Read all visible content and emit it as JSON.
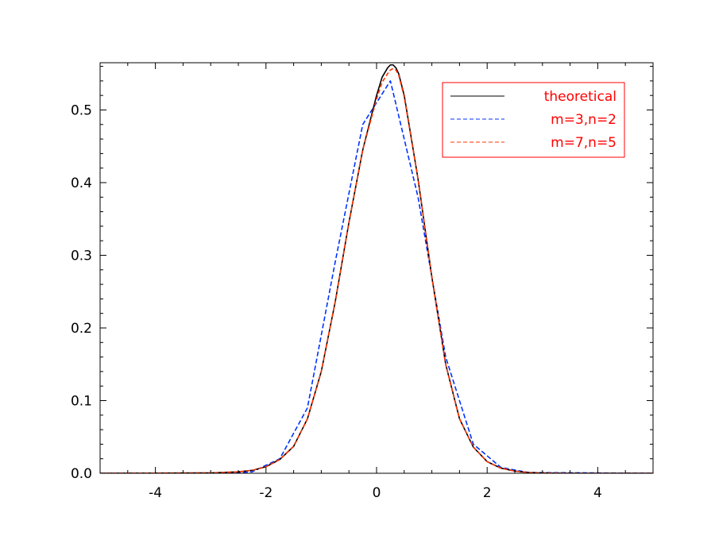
{
  "chart_data": {
    "type": "line",
    "title": "",
    "xlabel": "",
    "ylabel": "",
    "xlim": [
      -5,
      5
    ],
    "ylim": [
      0,
      0.565
    ],
    "xticks": [
      -4,
      -2,
      0,
      2,
      4
    ],
    "xtick_labels": [
      "-4",
      "-2",
      "0",
      "2",
      "4"
    ],
    "yticks": [
      0.0,
      0.1,
      0.2,
      0.3,
      0.4,
      0.5
    ],
    "ytick_labels": [
      "0.0",
      "0.1",
      "0.2",
      "0.3",
      "0.4",
      "0.5"
    ],
    "grid": false,
    "legend_position": "top-right",
    "legend_text_color": "#ff0000",
    "legend_border_color": "#ff0000",
    "series": [
      {
        "name": "theoretical",
        "color": "#000000",
        "dash": "solid",
        "x": [
          -5.0,
          -3.0,
          -2.5,
          -2.25,
          -2.0,
          -1.75,
          -1.5,
          -1.25,
          -1.0,
          -0.75,
          -0.5,
          -0.25,
          0.0,
          0.1,
          0.2,
          0.25,
          0.3,
          0.35,
          0.4,
          0.5,
          0.75,
          1.0,
          1.25,
          1.5,
          1.75,
          2.0,
          2.25,
          2.5,
          2.75,
          3.0,
          3.5,
          5.0
        ],
        "y": [
          0.0,
          0.0005,
          0.002,
          0.004,
          0.009,
          0.019,
          0.037,
          0.075,
          0.14,
          0.235,
          0.345,
          0.445,
          0.52,
          0.545,
          0.558,
          0.562,
          0.562,
          0.558,
          0.55,
          0.52,
          0.405,
          0.27,
          0.15,
          0.075,
          0.036,
          0.016,
          0.007,
          0.003,
          0.001,
          0.0004,
          0.0,
          0.0
        ]
      },
      {
        "name": "m=3,n=2",
        "color": "#0033ff",
        "dash": "dashed",
        "x": [
          -5.0,
          -2.75,
          -2.25,
          -1.75,
          -1.25,
          -0.75,
          -0.25,
          0.25,
          0.75,
          1.25,
          1.75,
          2.25,
          2.75,
          5.0
        ],
        "y": [
          0.0,
          0.0,
          0.002,
          0.02,
          0.09,
          0.29,
          0.48,
          0.54,
          0.38,
          0.16,
          0.04,
          0.008,
          0.001,
          0.0
        ]
      },
      {
        "name": "m=7,n=5",
        "color": "#ff3300",
        "dash": "dashed",
        "x": [
          -5.0,
          -3.0,
          -2.5,
          -2.25,
          -2.0,
          -1.75,
          -1.5,
          -1.25,
          -1.0,
          -0.75,
          -0.5,
          -0.25,
          0.0,
          0.1,
          0.2,
          0.25,
          0.3,
          0.35,
          0.4,
          0.5,
          0.75,
          1.0,
          1.25,
          1.5,
          1.75,
          2.0,
          2.25,
          2.5,
          2.75,
          3.0,
          3.5,
          5.0
        ],
        "y": [
          0.0,
          0.0005,
          0.002,
          0.004,
          0.009,
          0.019,
          0.037,
          0.075,
          0.14,
          0.235,
          0.345,
          0.445,
          0.515,
          0.538,
          0.55,
          0.555,
          0.557,
          0.555,
          0.548,
          0.518,
          0.405,
          0.27,
          0.15,
          0.075,
          0.036,
          0.016,
          0.007,
          0.003,
          0.001,
          0.0004,
          0.0,
          0.0
        ]
      }
    ]
  }
}
